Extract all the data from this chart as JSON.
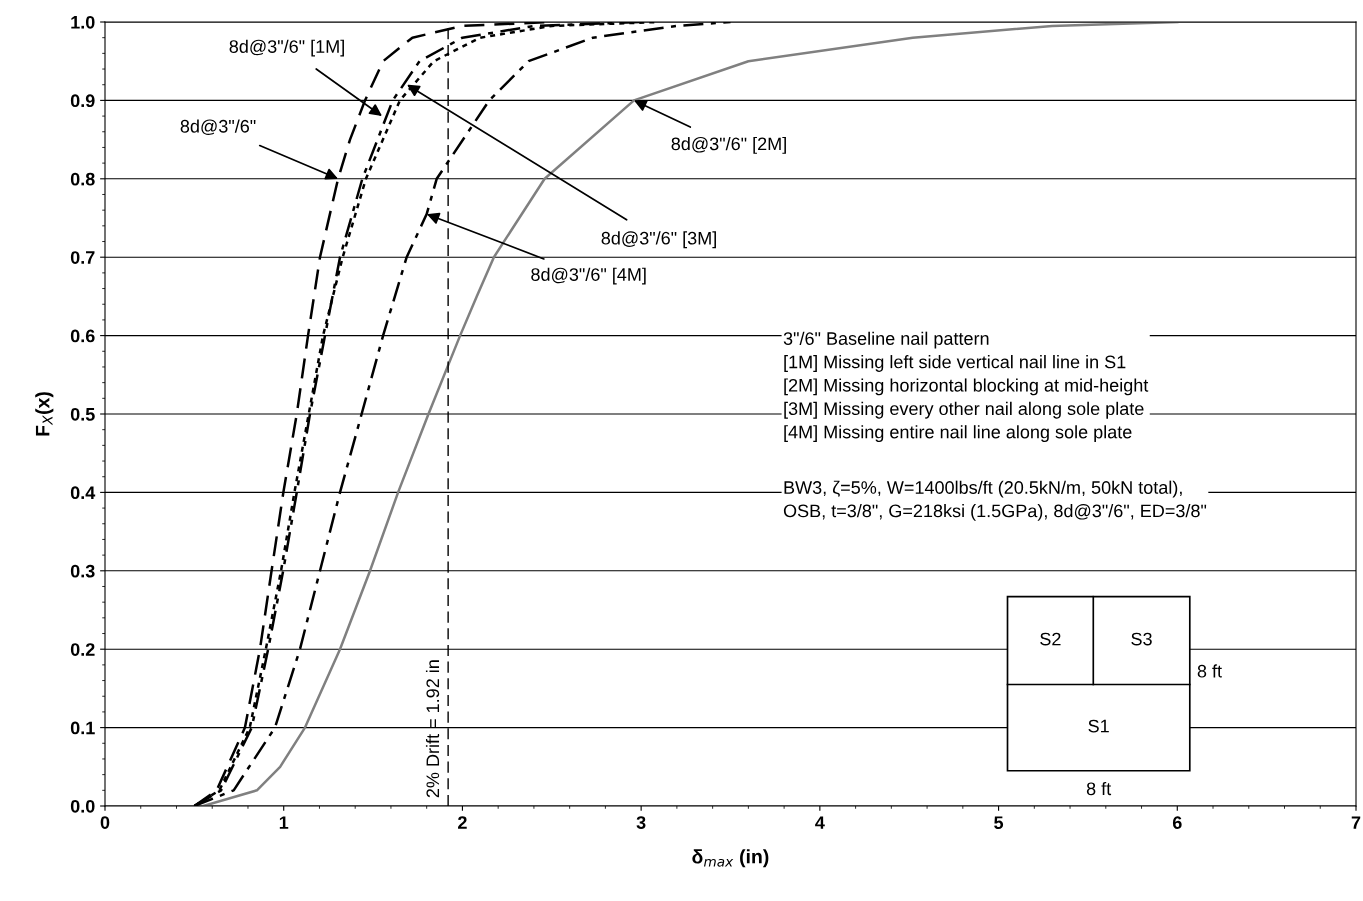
{
  "chart_data": {
    "type": "line",
    "xlabel": "δ$_{max}$ (in)",
    "ylabel": "F$_{X}$(x)",
    "xlim": [
      0,
      7
    ],
    "xticks": [
      0,
      1,
      2,
      3,
      4,
      5,
      6,
      7
    ],
    "ylim": [
      0,
      1
    ],
    "yticks": [
      {
        "value": 0,
        "label": "0.0"
      },
      0.1,
      0.2,
      0.3,
      0.4,
      0.5,
      0.6,
      0.7,
      0.8,
      0.9,
      {
        "value": 1,
        "label": "1.0"
      }
    ],
    "grid": "y",
    "marker": "none",
    "series": [
      {
        "color": "#000000",
        "line_style": "dashed",
        "x": [
          0.5,
          0.625,
          0.783,
          0.867,
          0.932,
          0.998,
          1.073,
          1.136,
          1.203,
          1.304,
          1.371,
          1.455,
          1.556,
          1.72,
          2.0,
          2.5
        ],
        "values": [
          0,
          0.02,
          0.1,
          0.2,
          0.3,
          0.4,
          0.5,
          0.6,
          0.7,
          0.8,
          0.85,
          0.9,
          0.95,
          0.98,
          0.995,
          1.0
        ]
      },
      {
        "color": "#000000",
        "line_style": "dashdot",
        "x": [
          0.5,
          0.65,
          0.821,
          0.913,
          0.997,
          1.073,
          1.147,
          1.231,
          1.315,
          1.44,
          1.61,
          1.76,
          2.0,
          2.4,
          3.0
        ],
        "values": [
          0,
          0.02,
          0.1,
          0.2,
          0.3,
          0.4,
          0.5,
          0.6,
          0.7,
          0.8,
          0.9,
          0.95,
          0.98,
          0.995,
          1.0
        ]
      },
      {
        "color": "#808080",
        "line_style": "solid",
        "x": [
          0.55,
          0.85,
          0.98,
          1.119,
          1.315,
          1.483,
          1.64,
          1.81,
          1.987,
          2.08,
          2.176,
          2.46,
          2.96,
          3.6,
          4.52,
          5.3,
          6.0
        ],
        "values": [
          0,
          0.02,
          0.05,
          0.1,
          0.2,
          0.3,
          0.4,
          0.5,
          0.6,
          0.65,
          0.7,
          0.8,
          0.9,
          0.95,
          0.98,
          0.995,
          1.0
        ]
      },
      {
        "color": "#000000",
        "line_style": "dotted",
        "x": [
          0.5,
          0.64,
          0.81,
          0.9,
          0.985,
          1.06,
          1.14,
          1.22,
          1.33,
          1.46,
          1.65,
          1.84,
          2.1,
          2.5,
          3.1
        ],
        "values": [
          0,
          0.02,
          0.1,
          0.2,
          0.3,
          0.4,
          0.5,
          0.6,
          0.7,
          0.8,
          0.9,
          0.95,
          0.98,
          0.995,
          1.0
        ]
      },
      {
        "color": "#000000",
        "line_style": "dashdot",
        "x": [
          0.5,
          0.72,
          0.951,
          1.091,
          1.203,
          1.315,
          1.436,
          1.556,
          1.688,
          1.8,
          1.856,
          2.15,
          2.37,
          2.73,
          3.2,
          3.5
        ],
        "values": [
          0,
          0.02,
          0.1,
          0.2,
          0.3,
          0.4,
          0.5,
          0.6,
          0.7,
          0.755,
          0.8,
          0.9,
          0.95,
          0.98,
          0.995,
          1.0
        ]
      }
    ],
    "ref_lines": [
      {
        "axis": "x",
        "value": 1.92,
        "label": "2% Drift = 1.92 in",
        "color": "#000000",
        "line_style": "dashed"
      }
    ],
    "annotations": [
      {
        "text": "8d@3\"/6\"",
        "x": 1.304,
        "y": 0.8
      },
      {
        "text": "8d@3\"/6\" [1M]",
        "x": 1.55,
        "y": 0.88
      },
      {
        "text": "8d@3\"/6\" [2M]",
        "x": 2.96,
        "y": 0.9
      },
      {
        "text": "8d@3\"/6\" [3M]",
        "x": 1.69,
        "y": 0.92
      },
      {
        "text": "8d@3\"/6\" [4M]",
        "x": 1.8,
        "y": 0.755
      },
      "3\"/6\" Baseline nail pattern\n[1M] Missing left side vertical nail line in S1\n[2M] Missing horizontal blocking at mid-height\n[3M] Missing every other nail along sole plate\n[4M] Missing entire nail line along sole plate",
      "BW3, ζ=5%, W=1400lbs/ft (20.5kN/m, 50kN total),\nOSB, t=3/8\", G=218ksi (1.5GPa), 8d@3\"/6\", ED=3/8\"",
      "S2",
      "S3",
      "S1",
      "8 ft",
      "8 ft"
    ]
  }
}
